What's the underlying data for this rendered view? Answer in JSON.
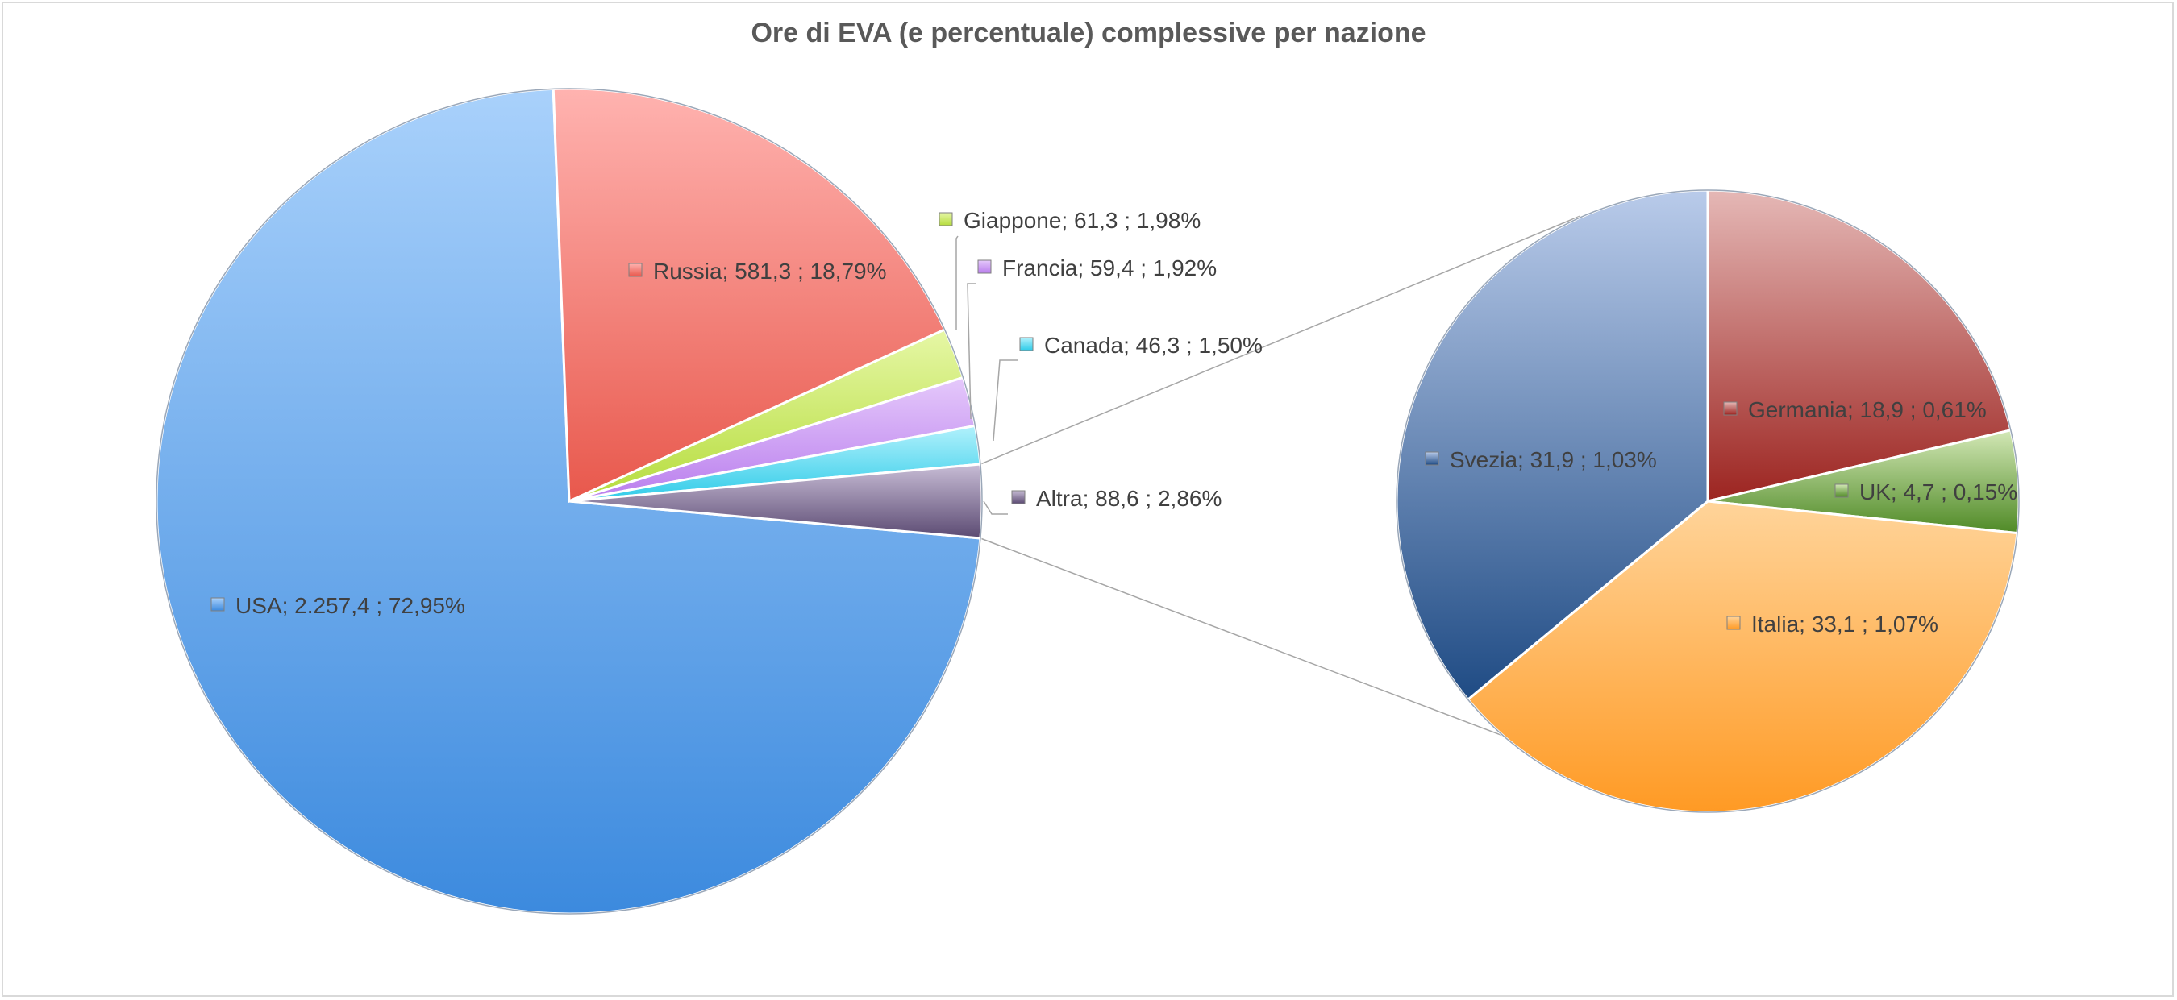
{
  "chart_data": {
    "type": "pie",
    "title": "Ore di EVA (e percentuale) complessive per nazione",
    "slices": [
      {
        "name": "USA",
        "value": 2257.4,
        "value_label": "2.257,4",
        "percent_label": "72,95%",
        "color_top": "#a9d1fb",
        "color_bottom": "#3c8ade"
      },
      {
        "name": "Russia",
        "value": 581.3,
        "value_label": "581,3",
        "percent_label": "18,79%",
        "color_top": "#ffb3b0",
        "color_bottom": "#e8584c"
      },
      {
        "name": "Giappone",
        "value": 61.3,
        "value_label": "61,3",
        "percent_label": "1,98%",
        "color_top": "#e6f7a6",
        "color_bottom": "#b5dc3c"
      },
      {
        "name": "Francia",
        "value": 59.4,
        "value_label": "59,4",
        "percent_label": "1,92%",
        "color_top": "#e5c9fb",
        "color_bottom": "#b97ded"
      },
      {
        "name": "Canada",
        "value": 46.3,
        "value_label": "46,3",
        "percent_label": "1,50%",
        "color_top": "#b2f1fc",
        "color_bottom": "#2ecbe8"
      },
      {
        "name": "Altra",
        "value": 88.6,
        "value_label": "88,6",
        "percent_label": "2,86%",
        "color_top": "#c8bdd6",
        "color_bottom": "#5b4a72"
      }
    ],
    "secondary_of": "Altra",
    "secondary_slices": [
      {
        "name": "Germania",
        "value": 18.9,
        "value_label": "18,9",
        "percent_label": "0,61%",
        "color_top": "#e5b8b6",
        "color_bottom": "#9c2420"
      },
      {
        "name": "UK",
        "value": 4.7,
        "value_label": "4,7",
        "percent_label": "0,15%",
        "color_top": "#d3e8b6",
        "color_bottom": "#4f8a26"
      },
      {
        "name": "Italia",
        "value": 33.1,
        "value_label": "33,1",
        "percent_label": "1,07%",
        "color_top": "#ffd49a",
        "color_bottom": "#ff9a24"
      },
      {
        "name": "Svezia",
        "value": 31.9,
        "value_label": "31,9",
        "percent_label": "1,03%",
        "color_top": "#b9cbea",
        "color_bottom": "#1f4b84"
      }
    ]
  }
}
